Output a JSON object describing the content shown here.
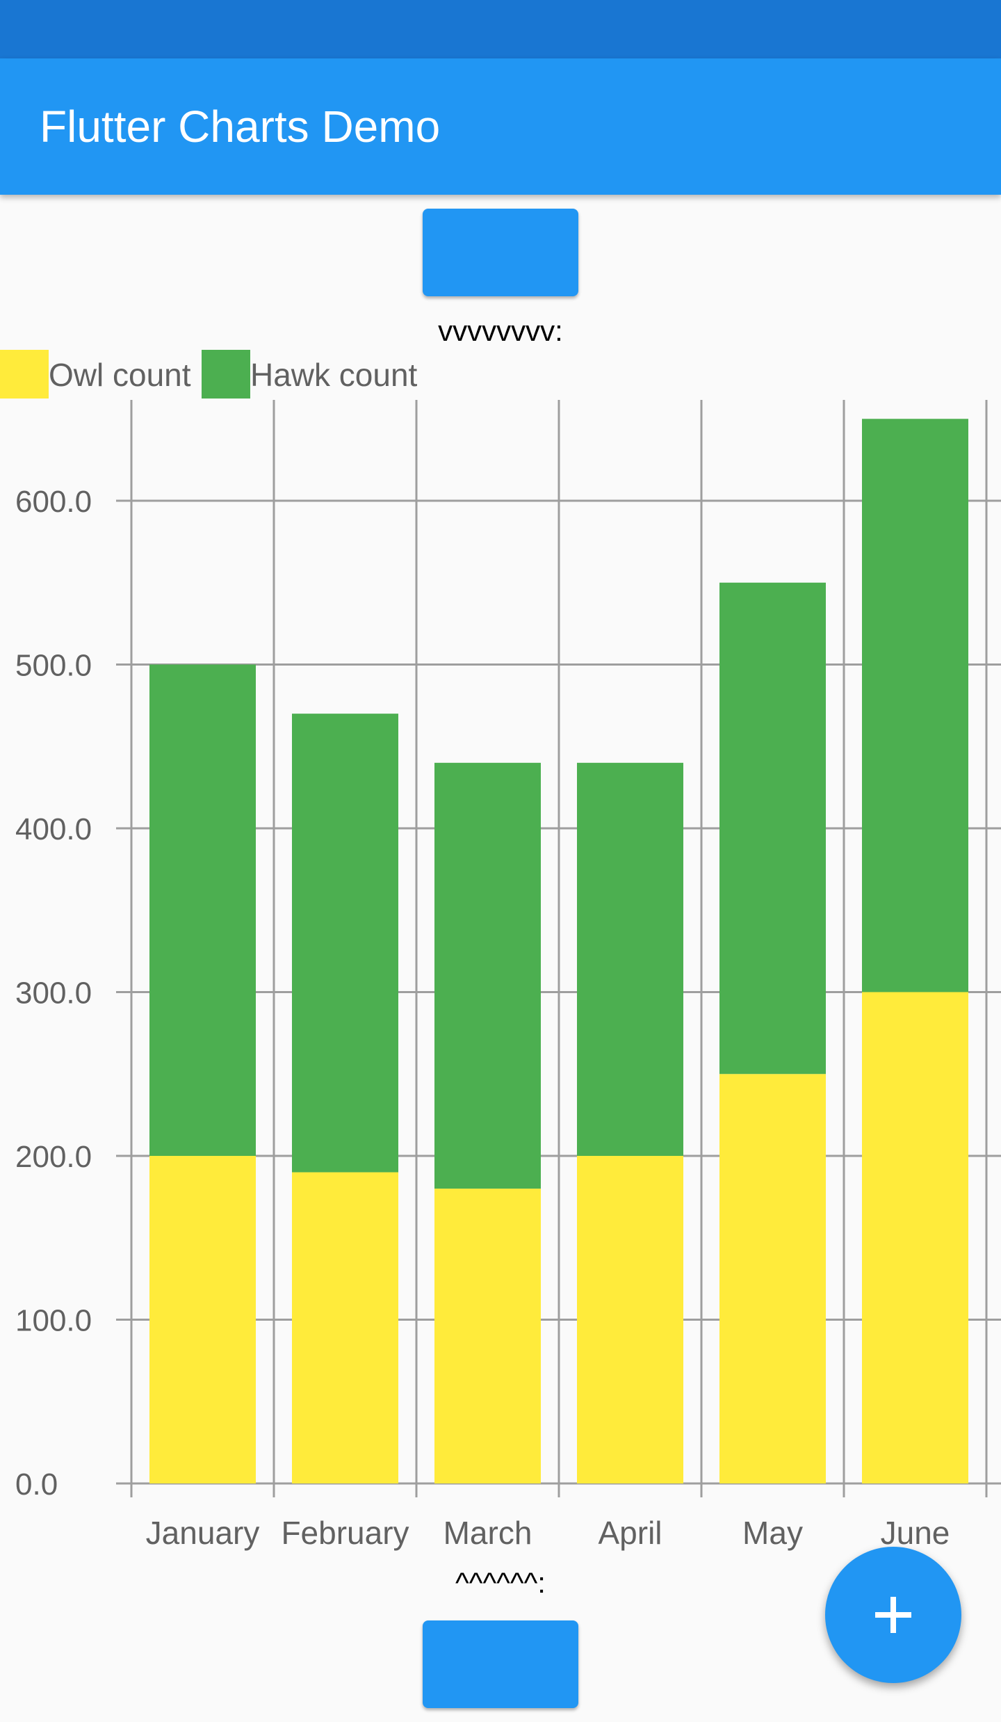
{
  "app_bar": {
    "title": "Flutter Charts Demo"
  },
  "top_button": {
    "label": ""
  },
  "bottom_button": {
    "label": ""
  },
  "top_caption": "vvvvvvvv:",
  "bottom_caption": "^^^^^^:",
  "fab": {
    "icon": "plus-icon"
  },
  "colors": {
    "status_bar": "#1976d2",
    "app_bar": "#2196f3",
    "owl": "#ffeb3b",
    "hawk": "#4caf50",
    "grid": "#9e9e9e",
    "label": "#616161"
  },
  "chart_data": {
    "type": "bar",
    "stacked": true,
    "categories": [
      "January",
      "February",
      "March",
      "April",
      "May",
      "June"
    ],
    "series": [
      {
        "name": "Owl count",
        "values": [
          200,
          190,
          180,
          200,
          250,
          300
        ],
        "color": "#ffeb3b"
      },
      {
        "name": "Hawk count",
        "values": [
          300,
          280,
          260,
          240,
          300,
          350
        ],
        "color": "#4caf50"
      }
    ],
    "yticks": [
      "0.0",
      "100.0",
      "200.0",
      "300.0",
      "400.0",
      "500.0",
      "600.0"
    ],
    "ylim": [
      0,
      600
    ],
    "grid": true,
    "legend": "top-left"
  }
}
